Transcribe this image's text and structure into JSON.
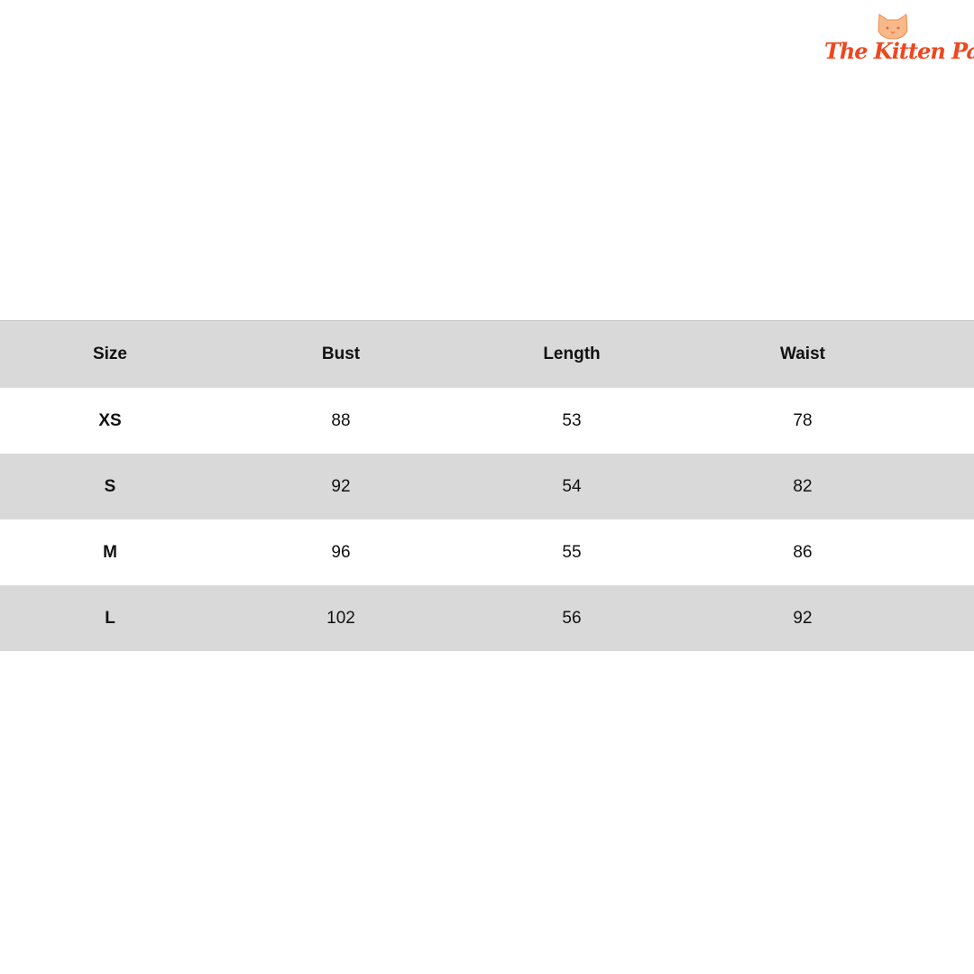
{
  "logo": {
    "text": "The Kitten Park",
    "color": "#f0461e",
    "icon": "cat-face-icon"
  },
  "table": {
    "headers": [
      "Size",
      "Bust",
      "Length",
      "Waist"
    ],
    "rows": [
      [
        "XS",
        "88",
        "53",
        "78"
      ],
      [
        "S",
        "92",
        "54",
        "82"
      ],
      [
        "M",
        "96",
        "55",
        "86"
      ],
      [
        "L",
        "102",
        "56",
        "92"
      ]
    ],
    "shade_color": "#d9d9d9"
  }
}
